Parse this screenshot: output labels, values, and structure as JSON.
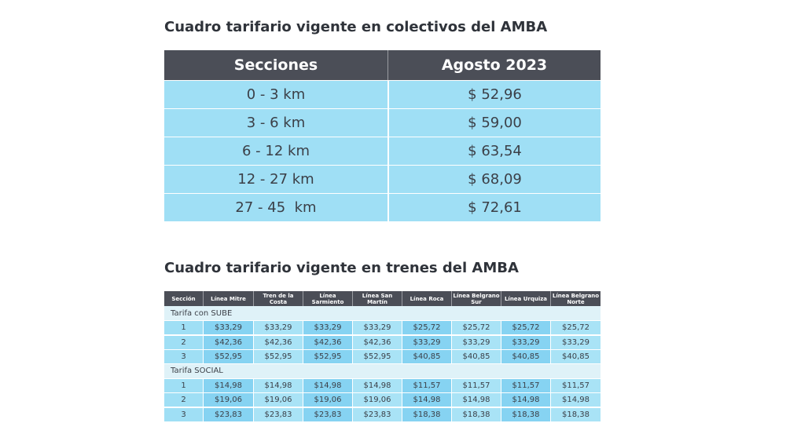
{
  "table1": {
    "title": "Cuadro tarifario vigente en colectivos del AMBA",
    "headers": [
      "Secciones",
      "Agosto 2023"
    ],
    "rows": [
      [
        "0 - 3 km",
        "$ 52,96"
      ],
      [
        "3 - 6 km",
        "$ 59,00"
      ],
      [
        "6 - 12 km",
        "$ 63,54"
      ],
      [
        "12 - 27 km",
        "$ 68,09"
      ],
      [
        "27 - 45  km",
        "$ 72,61"
      ]
    ]
  },
  "table2": {
    "title": "Cuadro tarifario vigente en trenes del AMBA",
    "headers": [
      "Sección",
      "Línea Mitre",
      "Tren de la Costa",
      "Línea Sarmiento",
      "Línea San Martín",
      "Línea Roca",
      "Línea Belgrano Sur",
      "Línea Urquiza",
      "Línea Belgrano Norte"
    ],
    "groups": [
      {
        "label": "Tarifa con SUBE",
        "rows": [
          [
            "1",
            "$33,29",
            "$33,29",
            "$33,29",
            "$33,29",
            "$25,72",
            "$25,72",
            "$25,72",
            "$25,72"
          ],
          [
            "2",
            "$42,36",
            "$42,36",
            "$42,36",
            "$42,36",
            "$33,29",
            "$33,29",
            "$33,29",
            "$33,29"
          ],
          [
            "3",
            "$52,95",
            "$52,95",
            "$52,95",
            "$52,95",
            "$40,85",
            "$40,85",
            "$40,85",
            "$40,85"
          ]
        ]
      },
      {
        "label": "Tarifa SOCIAL",
        "rows": [
          [
            "1",
            "$14,98",
            "$14,98",
            "$14,98",
            "$14,98",
            "$11,57",
            "$11,57",
            "$11,57",
            "$11,57"
          ],
          [
            "2",
            "$19,06",
            "$19,06",
            "$19,06",
            "$19,06",
            "$14,98",
            "$14,98",
            "$14,98",
            "$14,98"
          ],
          [
            "3",
            "$23,83",
            "$23,83",
            "$23,83",
            "$23,83",
            "$18,38",
            "$18,38",
            "$18,38",
            "$18,38"
          ]
        ]
      }
    ]
  }
}
